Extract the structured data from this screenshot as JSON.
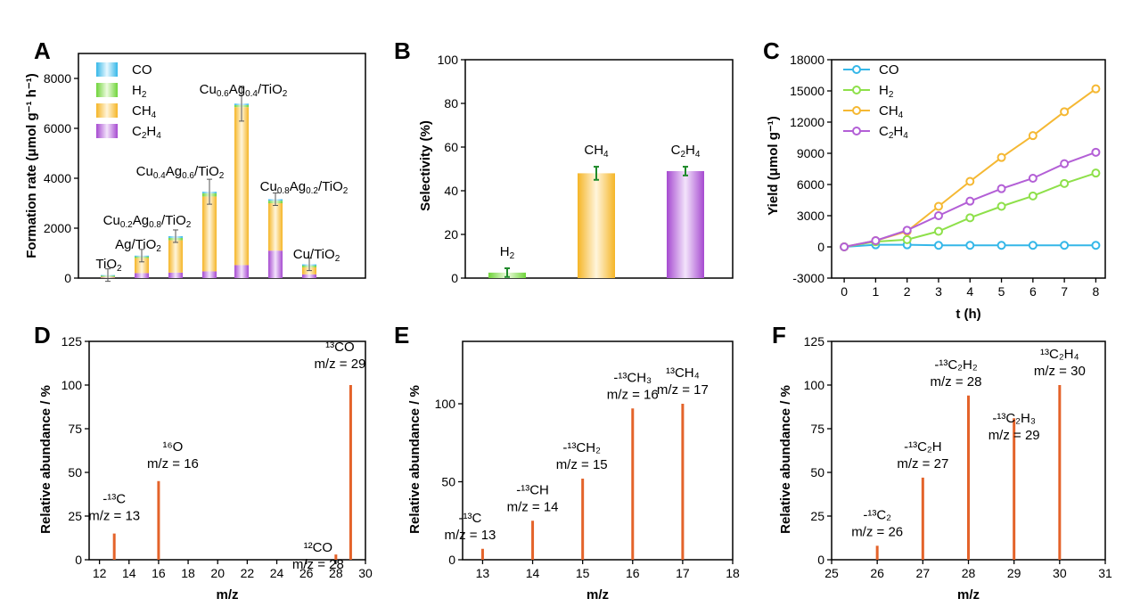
{
  "colors": {
    "CO": "#35b7e8",
    "H2": "#8ee04a",
    "CH4": "#f5b833",
    "C2H4": "#b35fd6",
    "ms_line": "#e4632a"
  },
  "panelA": {
    "letter": "A",
    "chart_data": {
      "type": "bar",
      "stacked": true,
      "ylabel": "Formation rate (μmol g⁻¹ h⁻¹)",
      "ylim": [
        0,
        9000
      ],
      "yticks": [
        0,
        2000,
        4000,
        6000,
        8000
      ],
      "categories": [
        "TiO2",
        "Ag/TiO2",
        "Cu0.2Ag0.8/TiO2",
        "Cu0.4Ag0.6/TiO2",
        "Cu0.6Ag0.4/TiO2",
        "Cu0.8Ag0.2/TiO2",
        "Cu/TiO2"
      ],
      "legend": [
        "CO",
        "H2",
        "CH4",
        "C2H4"
      ],
      "series": [
        {
          "name": "C2H4",
          "values": [
            20,
            200,
            220,
            270,
            520,
            1100,
            150
          ]
        },
        {
          "name": "CH4",
          "values": [
            30,
            600,
            1300,
            3000,
            6330,
            1900,
            280
          ]
        },
        {
          "name": "H2",
          "values": [
            40,
            60,
            90,
            130,
            80,
            100,
            70
          ]
        },
        {
          "name": "CO",
          "values": [
            30,
            40,
            70,
            60,
            60,
            60,
            50
          ]
        }
      ]
    },
    "bar_labels": [
      {
        "main": "TiO",
        "sub": "2",
        "tail": ""
      },
      {
        "main": "Ag/TiO",
        "sub": "2",
        "tail": ""
      },
      {
        "main": "Cu",
        "sub": "0.2",
        "mid": "Ag",
        "sub2": "0.8",
        "tail": "/TiO",
        "sub3": "2"
      },
      {
        "main": "Cu",
        "sub": "0.4",
        "mid": "Ag",
        "sub2": "0.6",
        "tail": "/TiO",
        "sub3": "2"
      },
      {
        "main": "Cu",
        "sub": "0.6",
        "mid": "Ag",
        "sub2": "0.4",
        "tail": "/TiO",
        "sub3": "2"
      },
      {
        "main": "Cu",
        "sub": "0.8",
        "mid": "Ag",
        "sub2": "0.2",
        "tail": "/TiO",
        "sub3": "2"
      },
      {
        "main": "Cu/TiO",
        "sub": "2",
        "tail": ""
      }
    ]
  },
  "panelB": {
    "letter": "B",
    "chart_data": {
      "type": "bar",
      "ylabel": "Selectivity (%)",
      "ylim": [
        0,
        100
      ],
      "yticks": [
        0,
        20,
        40,
        60,
        80,
        100
      ],
      "categories": [
        "H2",
        "CH4",
        "C2H4"
      ],
      "values": [
        2.5,
        48,
        49
      ],
      "errors": [
        2,
        3,
        2
      ]
    }
  },
  "panelC": {
    "letter": "C",
    "chart_data": {
      "type": "line",
      "xlabel": "t (h)",
      "ylabel": "Yield (μmol g⁻¹)",
      "xlim": [
        -0.4,
        8.3
      ],
      "ylim": [
        -3000,
        18000
      ],
      "xticks": [
        0,
        1,
        2,
        3,
        4,
        5,
        6,
        7,
        8
      ],
      "yticks": [
        -3000,
        0,
        3000,
        6000,
        9000,
        12000,
        15000,
        18000
      ],
      "x": [
        0,
        1,
        2,
        3,
        4,
        5,
        6,
        7,
        8
      ],
      "series": [
        {
          "name": "CO",
          "values": [
            0,
            200,
            200,
            150,
            150,
            150,
            150,
            150,
            150
          ]
        },
        {
          "name": "H2",
          "values": [
            0,
            500,
            700,
            1500,
            2800,
            3900,
            4900,
            6100,
            7100
          ]
        },
        {
          "name": "CH4",
          "values": [
            0,
            600,
            1500,
            3900,
            6300,
            8600,
            10700,
            13000,
            15200
          ]
        },
        {
          "name": "C2H4",
          "values": [
            0,
            600,
            1600,
            3000,
            4400,
            5600,
            6600,
            8000,
            9100
          ]
        }
      ]
    }
  },
  "panelD": {
    "letter": "D",
    "chart_data": {
      "type": "bar",
      "xlabel": "m/z",
      "ylabel": "Relative abundance / %",
      "xlim": [
        11.3,
        30
      ],
      "ylim": [
        0,
        125
      ],
      "xticks": [
        12,
        14,
        16,
        18,
        20,
        22,
        24,
        26,
        28,
        30
      ],
      "yticks": [
        0,
        25,
        50,
        75,
        100,
        125
      ],
      "peaks": [
        {
          "x": 13,
          "y": 15,
          "l1": "-¹³C",
          "l2": "m/z = 13"
        },
        {
          "x": 16,
          "y": 45,
          "l1": "¹⁶O",
          "l2": "m/z = 16"
        },
        {
          "x": 28,
          "y": 3,
          "l1": "¹²CO",
          "l2": "m/z = 28"
        },
        {
          "x": 29,
          "y": 100,
          "l1": "¹³CO",
          "l2": "m/z = 29"
        }
      ]
    }
  },
  "panelE": {
    "letter": "E",
    "chart_data": {
      "type": "bar",
      "xlabel": "m/z",
      "ylabel": "Relative abundance / %",
      "xlim": [
        12.6,
        18
      ],
      "ylim": [
        0,
        140
      ],
      "xticks": [
        13,
        14,
        15,
        16,
        17,
        18
      ],
      "yticks": [
        0,
        50,
        100
      ],
      "peaks": [
        {
          "x": 13,
          "y": 7,
          "l1": "-¹³C",
          "l2": "m/z = 13"
        },
        {
          "x": 14,
          "y": 25,
          "l1": "-¹³CH",
          "l2": "m/z = 14"
        },
        {
          "x": 15,
          "y": 52,
          "l1": "-¹³CH₂",
          "l2": "m/z = 15"
        },
        {
          "x": 16,
          "y": 97,
          "l1": "-¹³CH₃",
          "l2": "m/z = 16"
        },
        {
          "x": 17,
          "y": 100,
          "l1": "¹³CH₄",
          "l2": "m/z = 17"
        }
      ]
    }
  },
  "panelF": {
    "letter": "F",
    "chart_data": {
      "type": "bar",
      "xlabel": "m/z",
      "ylabel": "Relative abundance / %",
      "xlim": [
        25,
        31
      ],
      "ylim": [
        0,
        125
      ],
      "xticks": [
        25,
        26,
        27,
        28,
        29,
        30,
        31
      ],
      "yticks": [
        0,
        25,
        50,
        75,
        100,
        125
      ],
      "peaks": [
        {
          "x": 26,
          "y": 8,
          "l1": "-¹³C₂",
          "l2": "m/z = 26"
        },
        {
          "x": 27,
          "y": 47,
          "l1": "-¹³C₂H",
          "l2": "m/z = 27"
        },
        {
          "x": 28,
          "y": 94,
          "l1": "-¹³C₂H₂",
          "l2": "m/z = 28"
        },
        {
          "x": 29,
          "y": 81,
          "l1": "-¹³C₂H₃",
          "l2": "m/z = 29"
        },
        {
          "x": 30,
          "y": 100,
          "l1": "¹³C₂H₄",
          "l2": "m/z = 30"
        }
      ]
    }
  }
}
